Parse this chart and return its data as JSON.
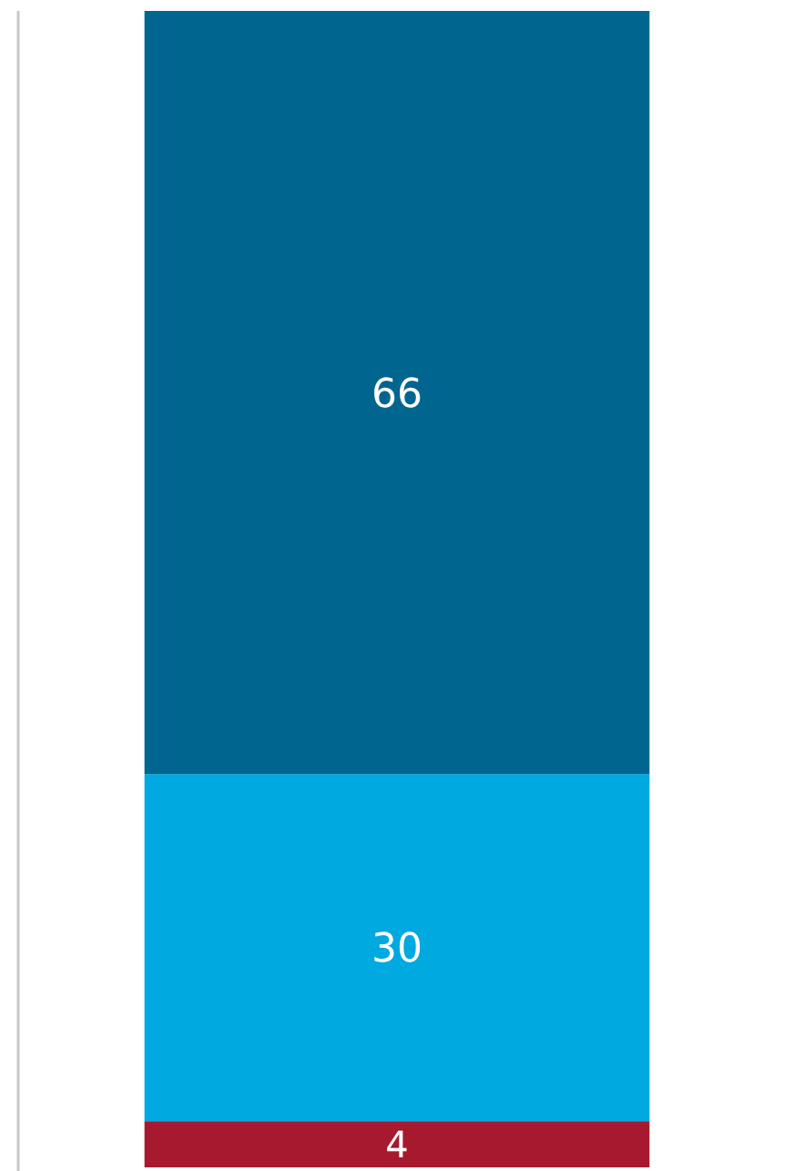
{
  "chart_data": {
    "type": "bar",
    "stacked": true,
    "categories": [
      null
    ],
    "data_labels": true,
    "series": [
      {
        "color": "#a6192e",
        "values": [
          4
        ]
      },
      {
        "color": "#00a9e0",
        "values": [
          30
        ]
      },
      {
        "color": "#00668f",
        "values": [
          66
        ]
      }
    ]
  }
}
